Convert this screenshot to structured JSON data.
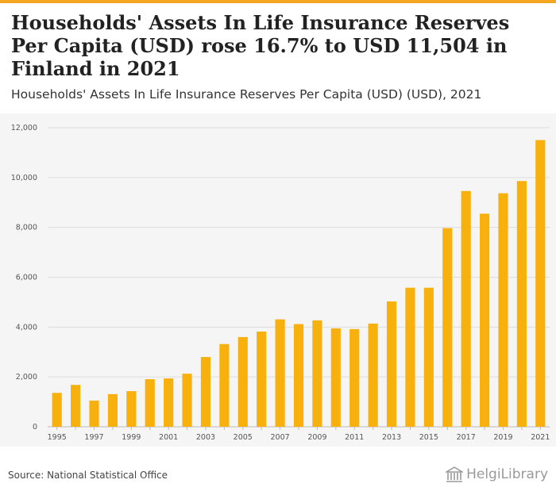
{
  "header": {
    "title": "Households' Assets In Life Insurance Reserves Per Capita (USD) rose 16.7% to USD 11,504 in Finland in 2021",
    "subtitle": "Households' Assets In Life Insurance Reserves Per Capita (USD) (USD), 2021"
  },
  "footer": {
    "source": "Source: National Statistical Office",
    "logo_text": "HelgiLibrary"
  },
  "colors": {
    "bar": "#f8b00c",
    "grid": "#dddddd",
    "accent": "#f5a623"
  },
  "chart_data": {
    "type": "bar",
    "title": "Households' Assets In Life Insurance Reserves Per Capita (USD) (USD), 2021",
    "xlabel": "",
    "ylabel": "",
    "ylim": [
      0,
      12000
    ],
    "yticks": [
      0,
      2000,
      4000,
      6000,
      8000,
      10000,
      12000
    ],
    "ytick_labels": [
      "0",
      "2,000",
      "4,000",
      "6,000",
      "8,000",
      "10,000",
      "12,000"
    ],
    "categories": [
      "1995",
      "1996",
      "1997",
      "1998",
      "1999",
      "2000",
      "2001",
      "2002",
      "2003",
      "2004",
      "2005",
      "2006",
      "2007",
      "2008",
      "2009",
      "2010",
      "2011",
      "2012",
      "2013",
      "2014",
      "2015",
      "2016",
      "2017",
      "2018",
      "2019",
      "2020",
      "2021"
    ],
    "xtick_labels": [
      "1995",
      "",
      "1997",
      "",
      "1999",
      "",
      "2001",
      "",
      "2003",
      "",
      "2005",
      "",
      "2007",
      "",
      "2009",
      "",
      "2011",
      "",
      "2013",
      "",
      "2015",
      "",
      "2017",
      "",
      "2019",
      "",
      "2021"
    ],
    "values": [
      1360,
      1680,
      1050,
      1310,
      1430,
      1910,
      1940,
      2130,
      2800,
      3320,
      3600,
      3820,
      4310,
      4120,
      4270,
      3950,
      3920,
      4140,
      5030,
      5580,
      5580,
      7970,
      9460,
      8550,
      9370,
      9860,
      11504
    ],
    "grid": true,
    "legend": "none"
  }
}
